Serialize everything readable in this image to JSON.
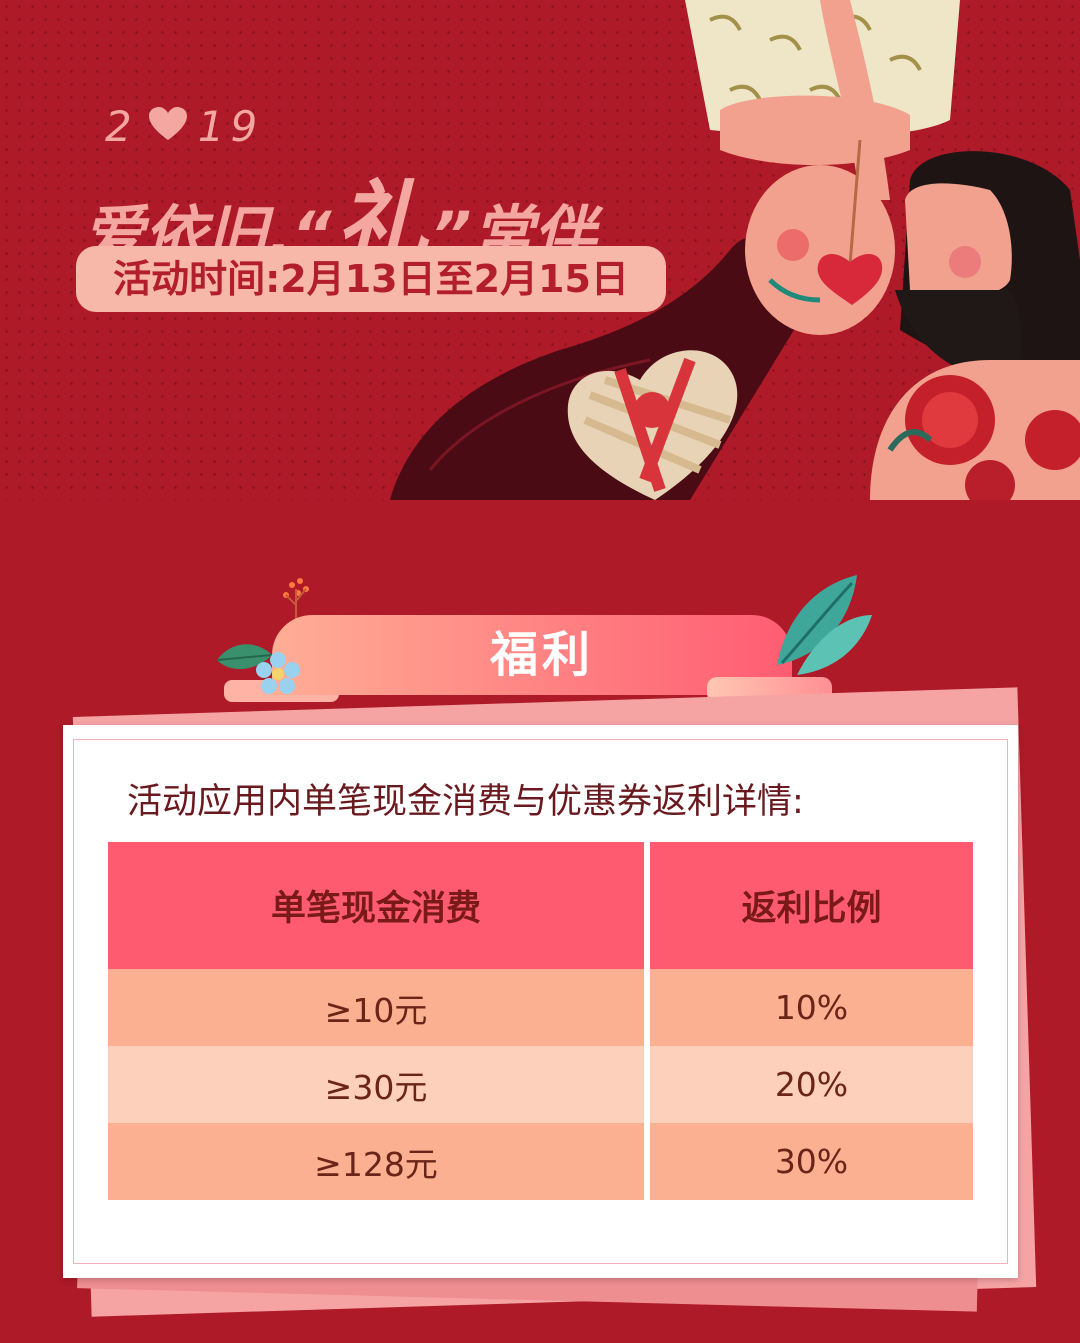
{
  "header": {
    "year_digits": [
      "2",
      "1",
      "9"
    ],
    "slogan_part1": "爱依旧,",
    "open_quote": "“",
    "gift_char": "礼",
    "close_quote": "”",
    "slogan_part2": "常伴",
    "time_label": "活动时间:2月13日至2月15日"
  },
  "banner": {
    "title": "福利"
  },
  "details": {
    "description": "活动应用内单笔现金消费与优惠券返利详情:",
    "columns": [
      "单笔现金消费",
      "返利比例"
    ],
    "rows": [
      {
        "spend": "≥10元",
        "rebate": "10%"
      },
      {
        "spend": "≥30元",
        "rebate": "20%"
      },
      {
        "spend": "≥128元",
        "rebate": "30%"
      }
    ]
  },
  "colors": {
    "background": "#ae1a27",
    "accent_pink": "#f4a7a0",
    "header_row": "#ff5b70",
    "row_dark": "#fbb092",
    "row_light": "#fdd0bb"
  },
  "icons": [
    "heart-icon",
    "couple-illustration",
    "heart-gift-box-icon",
    "leaf-decoration-icon",
    "flower-decoration-icon"
  ]
}
